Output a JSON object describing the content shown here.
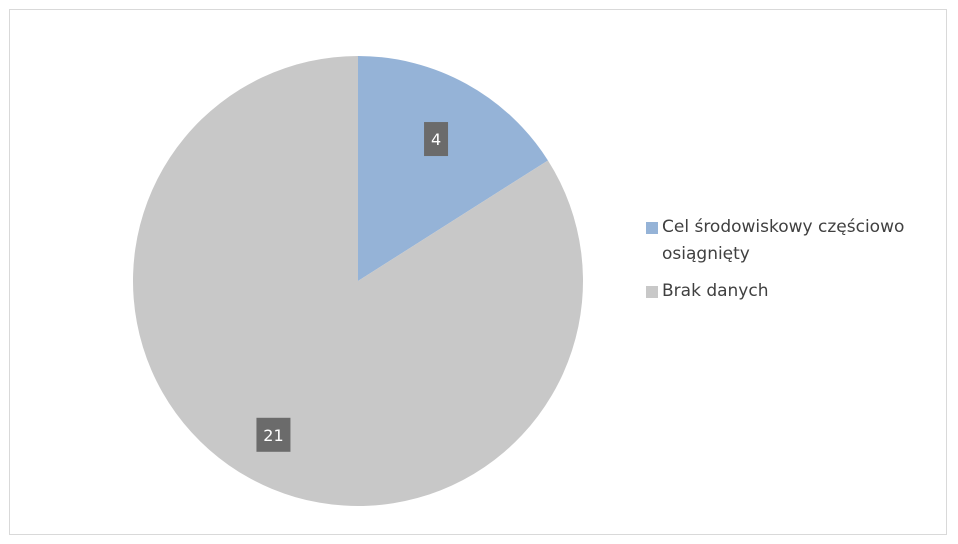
{
  "chart_data": {
    "type": "pie",
    "title": "",
    "legend_position": "right",
    "start_angle": "12 o'clock, clockwise",
    "slices": [
      {
        "label": "Cel środowiskowy częściowo osiągnięty",
        "value": 4,
        "data_label": "4",
        "color": "#95b3d7"
      },
      {
        "label": "Brak danych",
        "value": 21,
        "data_label": "21",
        "color": "#c8c8c8"
      }
    ],
    "data_label_box_color": "#6b6b6b",
    "data_label_text_color": "#ffffff"
  }
}
